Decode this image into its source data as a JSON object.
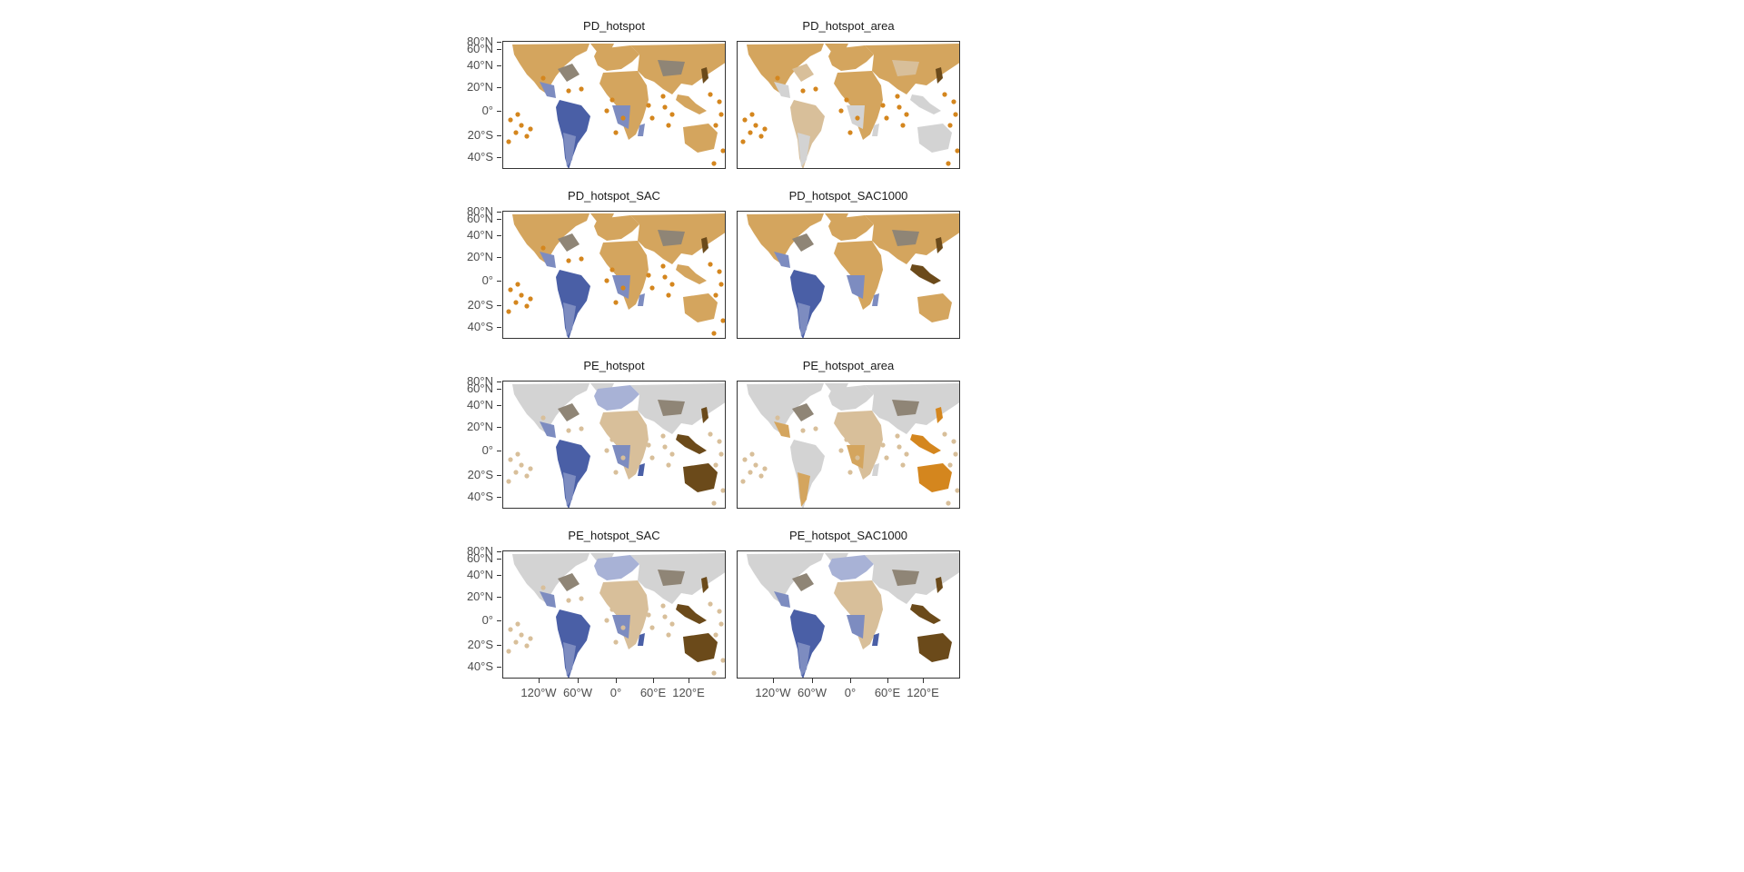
{
  "figure": {
    "panels": [
      {
        "id": "pd-hotspot",
        "title": "PD_hotspot",
        "scheme": "pd"
      },
      {
        "id": "pd-hotspot-area",
        "title": "PD_hotspot_area",
        "scheme": "pd-area"
      },
      {
        "id": "pd-hotspot-sac",
        "title": "PD_hotspot_SAC",
        "scheme": "pd"
      },
      {
        "id": "pd-hotspot-sac1000",
        "title": "PD_hotspot_SAC1000",
        "scheme": "pd-noisland"
      },
      {
        "id": "pe-hotspot",
        "title": "PE_hotspot",
        "scheme": "pe"
      },
      {
        "id": "pe-hotspot-area",
        "title": "PE_hotspot_area",
        "scheme": "pe-area"
      },
      {
        "id": "pe-hotspot-sac",
        "title": "PE_hotspot_SAC",
        "scheme": "pe"
      },
      {
        "id": "pe-hotspot-sac1000",
        "title": "PE_hotspot_SAC1000",
        "scheme": "pe-noisland"
      }
    ],
    "y_axis_labels": [
      "80°N",
      "60°N",
      "40°N",
      "20°N",
      "0°",
      "20°S",
      "40°S"
    ],
    "x_axis_labels": [
      "120°W",
      "60°W",
      "0°",
      "60°E",
      "120°E"
    ]
  },
  "colors": {
    "tan_light": "#d8bf9a",
    "tan": "#d4a55e",
    "orange": "#d4861e",
    "brown_dark": "#6b4a1a",
    "blue_dark": "#4a5fa6",
    "blue_mid": "#7d8cc0",
    "blue_light": "#a8b2d6",
    "grey": "#d3d3d3",
    "grey_brown": "#8f8576"
  }
}
